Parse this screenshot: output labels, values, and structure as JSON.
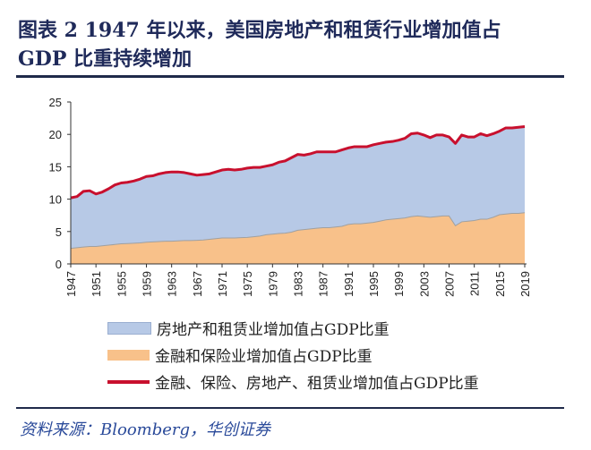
{
  "title_line1": "图表 2   1947 年以来，美国房地产和租赁行业增加值占",
  "title_line2": "GDP 比重持续增加",
  "source": "资料来源：Bloomberg，华创证券",
  "chart_data": {
    "type": "area",
    "title": "1947年以来，美国房地产和租赁行业增加值占GDP比重持续增加",
    "xlabel": "",
    "ylabel": "",
    "ylim": [
      0,
      25
    ],
    "yticks": [
      "0",
      "5",
      "10",
      "15",
      "20",
      "25"
    ],
    "xticks": [
      "1947",
      "1951",
      "1955",
      "1959",
      "1963",
      "1967",
      "1971",
      "1975",
      "1979",
      "1983",
      "1987",
      "1991",
      "1995",
      "1999",
      "2003",
      "2007",
      "2011",
      "2015",
      "2019"
    ],
    "grid": false,
    "legend_position": "bottom",
    "colors": {
      "real_estate": "#b7c9e6",
      "finance": "#f8c18a",
      "total": "#c8102e"
    },
    "legend": [
      "房地产和租赁业增加值占GDP比重",
      "金融和保险业增加值占GDP比重",
      "金融、保险、房地产、租赁业增加值占GDP比重"
    ],
    "x": [
      1947,
      1948,
      1949,
      1950,
      1951,
      1952,
      1953,
      1954,
      1955,
      1956,
      1957,
      1958,
      1959,
      1960,
      1961,
      1962,
      1963,
      1964,
      1965,
      1966,
      1967,
      1968,
      1969,
      1970,
      1971,
      1972,
      1973,
      1974,
      1975,
      1976,
      1977,
      1978,
      1979,
      1980,
      1981,
      1982,
      1983,
      1984,
      1985,
      1986,
      1987,
      1988,
      1989,
      1990,
      1991,
      1992,
      1993,
      1994,
      1995,
      1996,
      1997,
      1998,
      1999,
      2000,
      2001,
      2002,
      2003,
      2004,
      2005,
      2006,
      2007,
      2008,
      2009,
      2010,
      2011,
      2012,
      2013,
      2014,
      2015,
      2016,
      2017,
      2018,
      2019
    ],
    "series": [
      {
        "name": "金融、保险、房地产、租赁业增加值占GDP比重",
        "values": [
          10.2,
          10.4,
          11.2,
          11.3,
          10.8,
          11.1,
          11.6,
          12.2,
          12.5,
          12.6,
          12.8,
          13.1,
          13.5,
          13.6,
          13.9,
          14.1,
          14.2,
          14.2,
          14.1,
          13.9,
          13.7,
          13.8,
          13.9,
          14.2,
          14.5,
          14.6,
          14.5,
          14.6,
          14.8,
          14.9,
          14.9,
          15.1,
          15.3,
          15.7,
          15.9,
          16.4,
          16.9,
          16.8,
          17.0,
          17.3,
          17.3,
          17.3,
          17.3,
          17.6,
          17.9,
          18.1,
          18.1,
          18.1,
          18.4,
          18.6,
          18.8,
          18.9,
          19.1,
          19.4,
          20.1,
          20.2,
          19.9,
          19.5,
          19.9,
          19.9,
          19.6,
          18.6,
          19.9,
          19.6,
          19.6,
          20.1,
          19.8,
          20.1,
          20.5,
          21.0,
          21.0,
          21.1,
          21.2
        ]
      },
      {
        "name": "金融和保险业增加值占GDP比重",
        "values": [
          2.4,
          2.5,
          2.6,
          2.7,
          2.7,
          2.8,
          2.9,
          3.0,
          3.1,
          3.15,
          3.2,
          3.25,
          3.35,
          3.4,
          3.45,
          3.5,
          3.5,
          3.55,
          3.6,
          3.6,
          3.65,
          3.7,
          3.8,
          3.9,
          4.0,
          4.0,
          4.0,
          4.05,
          4.1,
          4.2,
          4.3,
          4.5,
          4.6,
          4.7,
          4.75,
          4.9,
          5.2,
          5.3,
          5.4,
          5.5,
          5.6,
          5.6,
          5.7,
          5.8,
          6.1,
          6.2,
          6.2,
          6.3,
          6.4,
          6.6,
          6.8,
          6.9,
          7.0,
          7.1,
          7.3,
          7.4,
          7.3,
          7.2,
          7.3,
          7.4,
          7.4,
          5.9,
          6.5,
          6.6,
          6.7,
          6.9,
          6.9,
          7.2,
          7.6,
          7.7,
          7.8,
          7.8,
          7.9
        ]
      }
    ]
  }
}
